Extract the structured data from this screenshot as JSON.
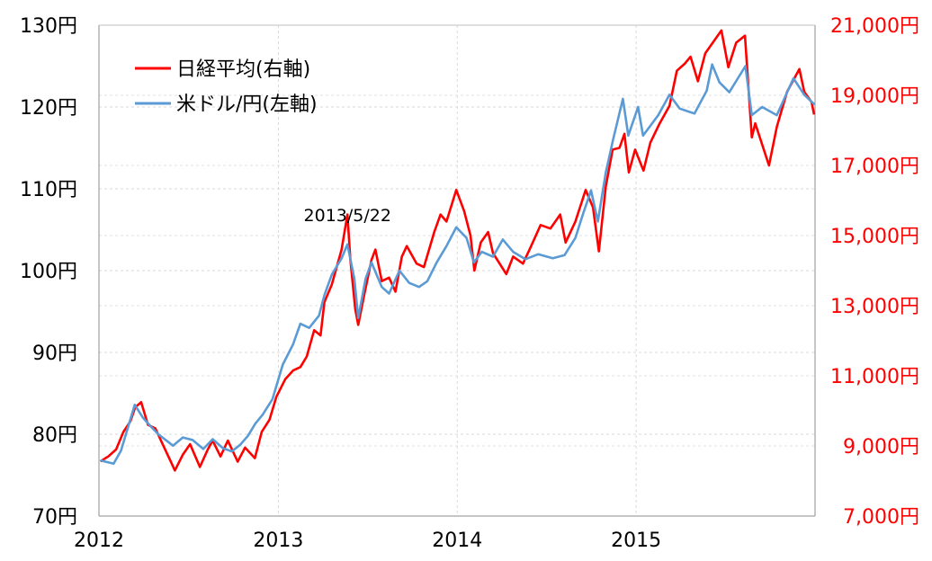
{
  "chart_data": {
    "type": "line",
    "grid": true,
    "legend_position": "top-left",
    "x_ticks": [
      "2012",
      "2013",
      "2014",
      "2015"
    ],
    "x_range": [
      "2012-01-01",
      "2016-01-01"
    ],
    "y_left": {
      "ticks": [
        "70円",
        "80円",
        "90円",
        "100円",
        "110円",
        "120円",
        "130円"
      ],
      "range": [
        70,
        130
      ]
    },
    "y_right": {
      "ticks": [
        "7,000円",
        "9,000円",
        "11,000円",
        "13,000円",
        "15,000円",
        "17,000円",
        "19,000円",
        "21,000円"
      ],
      "range": [
        7000,
        21000
      ],
      "color": "#ff0000"
    },
    "annotations": [
      {
        "text": "2013/5/22",
        "x": "2013-05-22"
      }
    ],
    "series": [
      {
        "name": "日経平均(右軸)",
        "axis": "right",
        "color": "#ff0000",
        "points": [
          [
            "2012-01-04",
            8560
          ],
          [
            "2012-01-20",
            8700
          ],
          [
            "2012-02-05",
            8900
          ],
          [
            "2012-02-20",
            9400
          ],
          [
            "2012-03-05",
            9700
          ],
          [
            "2012-03-15",
            10100
          ],
          [
            "2012-03-27",
            10250
          ],
          [
            "2012-04-10",
            9600
          ],
          [
            "2012-04-25",
            9500
          ],
          [
            "2012-05-10",
            9050
          ],
          [
            "2012-05-25",
            8600
          ],
          [
            "2012-06-04",
            8300
          ],
          [
            "2012-06-20",
            8750
          ],
          [
            "2012-07-05",
            9050
          ],
          [
            "2012-07-25",
            8400
          ],
          [
            "2012-08-10",
            8900
          ],
          [
            "2012-08-20",
            9150
          ],
          [
            "2012-09-05",
            8700
          ],
          [
            "2012-09-20",
            9150
          ],
          [
            "2012-10-10",
            8550
          ],
          [
            "2012-10-25",
            8950
          ],
          [
            "2012-11-14",
            8650
          ],
          [
            "2012-11-28",
            9400
          ],
          [
            "2012-12-14",
            9750
          ],
          [
            "2012-12-28",
            10400
          ],
          [
            "2013-01-15",
            10900
          ],
          [
            "2013-01-31",
            11150
          ],
          [
            "2013-02-15",
            11250
          ],
          [
            "2013-02-28",
            11550
          ],
          [
            "2013-03-15",
            12300
          ],
          [
            "2013-03-28",
            12150
          ],
          [
            "2013-04-05",
            13100
          ],
          [
            "2013-04-20",
            13600
          ],
          [
            "2013-05-10",
            14600
          ],
          [
            "2013-05-22",
            15600
          ],
          [
            "2013-05-28",
            14300
          ],
          [
            "2013-06-07",
            12900
          ],
          [
            "2013-06-13",
            12450
          ],
          [
            "2013-06-25",
            13300
          ],
          [
            "2013-07-10",
            14300
          ],
          [
            "2013-07-18",
            14600
          ],
          [
            "2013-07-31",
            13700
          ],
          [
            "2013-08-15",
            13800
          ],
          [
            "2013-08-28",
            13400
          ],
          [
            "2013-09-10",
            14400
          ],
          [
            "2013-09-20",
            14700
          ],
          [
            "2013-10-10",
            14200
          ],
          [
            "2013-10-25",
            14100
          ],
          [
            "2013-11-15",
            15100
          ],
          [
            "2013-11-28",
            15600
          ],
          [
            "2013-12-10",
            15400
          ],
          [
            "2013-12-30",
            16300
          ],
          [
            "2014-01-15",
            15700
          ],
          [
            "2014-01-28",
            15000
          ],
          [
            "2014-02-05",
            14000
          ],
          [
            "2014-02-18",
            14800
          ],
          [
            "2014-03-05",
            15100
          ],
          [
            "2014-03-15",
            14500
          ],
          [
            "2014-04-11",
            13900
          ],
          [
            "2014-04-25",
            14400
          ],
          [
            "2014-05-15",
            14200
          ],
          [
            "2014-05-30",
            14650
          ],
          [
            "2014-06-20",
            15300
          ],
          [
            "2014-07-10",
            15200
          ],
          [
            "2014-07-30",
            15600
          ],
          [
            "2014-08-10",
            14800
          ],
          [
            "2014-08-30",
            15400
          ],
          [
            "2014-09-20",
            16300
          ],
          [
            "2014-10-05",
            15800
          ],
          [
            "2014-10-17",
            14550
          ],
          [
            "2014-10-31",
            16400
          ],
          [
            "2014-11-14",
            17450
          ],
          [
            "2014-11-28",
            17500
          ],
          [
            "2014-12-08",
            17900
          ],
          [
            "2014-12-17",
            16800
          ],
          [
            "2014-12-30",
            17450
          ],
          [
            "2015-01-16",
            16850
          ],
          [
            "2015-01-30",
            17650
          ],
          [
            "2015-02-18",
            18200
          ],
          [
            "2015-03-10",
            18700
          ],
          [
            "2015-03-25",
            19700
          ],
          [
            "2015-04-10",
            19900
          ],
          [
            "2015-04-22",
            20100
          ],
          [
            "2015-05-07",
            19400
          ],
          [
            "2015-05-22",
            20200
          ],
          [
            "2015-06-24",
            20850
          ],
          [
            "2015-07-08",
            19800
          ],
          [
            "2015-07-24",
            20500
          ],
          [
            "2015-08-11",
            20700
          ],
          [
            "2015-08-25",
            17800
          ],
          [
            "2015-09-01",
            18200
          ],
          [
            "2015-09-29",
            17000
          ],
          [
            "2015-10-15",
            18100
          ],
          [
            "2015-11-05",
            19100
          ],
          [
            "2015-11-30",
            19750
          ],
          [
            "2015-12-10",
            19100
          ],
          [
            "2015-12-25",
            18800
          ],
          [
            "2015-12-30",
            18450
          ]
        ]
      },
      {
        "name": "米ドル/円(左軸)",
        "axis": "left",
        "color": "#5b9bd5",
        "points": [
          [
            "2012-01-04",
            76.8
          ],
          [
            "2012-01-31",
            76.4
          ],
          [
            "2012-02-15",
            78.0
          ],
          [
            "2012-03-01",
            81.0
          ],
          [
            "2012-03-14",
            83.6
          ],
          [
            "2012-03-31",
            82.0
          ],
          [
            "2012-04-15",
            81.0
          ],
          [
            "2012-05-01",
            80.0
          ],
          [
            "2012-05-31",
            78.6
          ],
          [
            "2012-06-20",
            79.6
          ],
          [
            "2012-07-10",
            79.3
          ],
          [
            "2012-08-01",
            78.2
          ],
          [
            "2012-08-20",
            79.4
          ],
          [
            "2012-09-10",
            78.3
          ],
          [
            "2012-09-28",
            77.9
          ],
          [
            "2012-10-15",
            78.7
          ],
          [
            "2012-10-31",
            79.8
          ],
          [
            "2012-11-15",
            81.3
          ],
          [
            "2012-11-30",
            82.4
          ],
          [
            "2012-12-20",
            84.3
          ],
          [
            "2013-01-10",
            88.5
          ],
          [
            "2013-01-31",
            91.0
          ],
          [
            "2013-02-15",
            93.5
          ],
          [
            "2013-03-05",
            93.0
          ],
          [
            "2013-03-25",
            94.5
          ],
          [
            "2013-04-05",
            97.0
          ],
          [
            "2013-04-20",
            99.5
          ],
          [
            "2013-05-10",
            101.5
          ],
          [
            "2013-05-22",
            103.2
          ],
          [
            "2013-06-05",
            99.0
          ],
          [
            "2013-06-13",
            94.2
          ],
          [
            "2013-06-28",
            99.0
          ],
          [
            "2013-07-10",
            101.0
          ],
          [
            "2013-07-31",
            98.0
          ],
          [
            "2013-08-15",
            97.2
          ],
          [
            "2013-09-05",
            100.0
          ],
          [
            "2013-09-25",
            98.5
          ],
          [
            "2013-10-15",
            98.0
          ],
          [
            "2013-11-01",
            98.7
          ],
          [
            "2013-11-20",
            101.0
          ],
          [
            "2013-12-10",
            103.0
          ],
          [
            "2013-12-30",
            105.3
          ],
          [
            "2014-01-20",
            104.0
          ],
          [
            "2014-02-04",
            101.0
          ],
          [
            "2014-02-20",
            102.3
          ],
          [
            "2014-03-15",
            101.7
          ],
          [
            "2014-04-04",
            103.8
          ],
          [
            "2014-04-25",
            102.3
          ],
          [
            "2014-05-20",
            101.4
          ],
          [
            "2014-06-15",
            102.0
          ],
          [
            "2014-07-15",
            101.5
          ],
          [
            "2014-08-08",
            101.9
          ],
          [
            "2014-08-30",
            104.0
          ],
          [
            "2014-09-15",
            107.0
          ],
          [
            "2014-10-01",
            109.8
          ],
          [
            "2014-10-15",
            106.0
          ],
          [
            "2014-10-31",
            112.0
          ],
          [
            "2014-11-15",
            116.0
          ],
          [
            "2014-12-05",
            121.0
          ],
          [
            "2014-12-16",
            116.5
          ],
          [
            "2015-01-05",
            120.0
          ],
          [
            "2015-01-15",
            116.5
          ],
          [
            "2015-02-15",
            119.0
          ],
          [
            "2015-03-10",
            121.5
          ],
          [
            "2015-03-31",
            119.8
          ],
          [
            "2015-04-30",
            119.2
          ],
          [
            "2015-05-25",
            122.0
          ],
          [
            "2015-06-05",
            125.2
          ],
          [
            "2015-06-20",
            123.0
          ],
          [
            "2015-07-10",
            121.8
          ],
          [
            "2015-08-12",
            125.0
          ],
          [
            "2015-08-25",
            119.0
          ],
          [
            "2015-09-15",
            120.0
          ],
          [
            "2015-10-15",
            119.0
          ],
          [
            "2015-11-18",
            123.5
          ],
          [
            "2015-12-10",
            121.5
          ],
          [
            "2015-12-31",
            120.3
          ]
        ]
      }
    ]
  }
}
